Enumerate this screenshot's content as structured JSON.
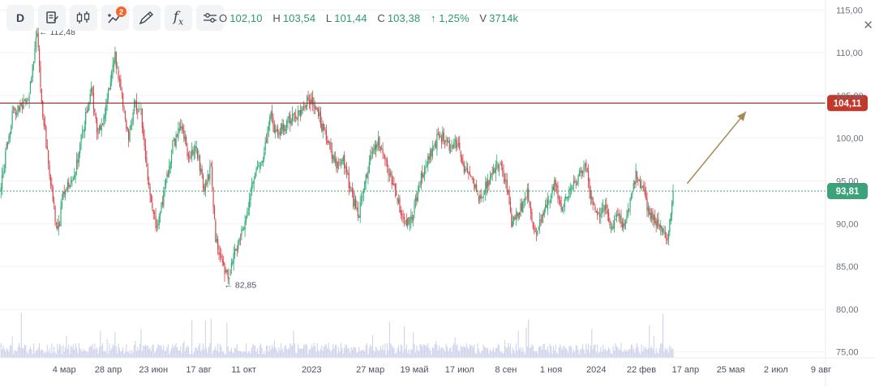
{
  "toolbar": {
    "period_label": "D",
    "indicator_badge": "2",
    "fx_label": "f",
    "fx_sub": "x",
    "icons": [
      "period-button",
      "edit-icon",
      "candles-icon",
      "indicators-icon",
      "draw-icon",
      "formula-icon",
      "settings-icon"
    ]
  },
  "ohlc": {
    "o_label": "O",
    "o_value": "102,10",
    "h_label": "H",
    "h_value": "103,54",
    "l_label": "L",
    "l_value": "101,44",
    "c_label": "C",
    "c_value": "103,38",
    "change_value": "↑ 1,25%",
    "v_label": "V",
    "v_value": "3714k",
    "value_color": "#2a9a6e"
  },
  "colors": {
    "up": "#2bab74",
    "down": "#d4484d",
    "level_line": "#8b2525",
    "level_badge": "#c0392b",
    "current_badge": "#3ca27a",
    "arrow": "#a88853",
    "volume": "#c5cbe8"
  },
  "chart_data": {
    "type": "candlestick",
    "y_ticks": [
      "115,00",
      "110,00",
      "105,00",
      "100,00",
      "95,00",
      "90,00",
      "85,00",
      "80,00",
      "75,00"
    ],
    "y_tick_values": [
      115,
      110,
      105,
      100,
      95,
      90,
      85,
      80,
      75
    ],
    "ylim": [
      74.3,
      115.6
    ],
    "x_ticks": [
      "4 мар",
      "28 апр",
      "23 июн",
      "17 авг",
      "11 окт",
      "2023",
      "27 мар",
      "19 май",
      "17 июл",
      "8 сен",
      "1 ноя",
      "2024",
      "22 фев",
      "17 апр",
      "25 мая",
      "2 июл",
      "9 авг"
    ],
    "x_tick_index": [
      45,
      84,
      124,
      164,
      204,
      264,
      316,
      355,
      395,
      436,
      476,
      516,
      556,
      595,
      635,
      675,
      715
    ],
    "total_slots": 730,
    "last_bar_index": 595,
    "anchors": [
      [
        0,
        94.5
      ],
      [
        10,
        102.8
      ],
      [
        22,
        104.0
      ],
      [
        26,
        106.0
      ],
      [
        32,
        112.4
      ],
      [
        36,
        104.2
      ],
      [
        44,
        95.0
      ],
      [
        50,
        88.8
      ],
      [
        56,
        94.0
      ],
      [
        64,
        94.8
      ],
      [
        72,
        100.5
      ],
      [
        80,
        105.5
      ],
      [
        86,
        100.2
      ],
      [
        94,
        104.3
      ],
      [
        101,
        109.6
      ],
      [
        109,
        103.5
      ],
      [
        113,
        99.6
      ],
      [
        118,
        104.0
      ],
      [
        124,
        102.8
      ],
      [
        130,
        95.6
      ],
      [
        138,
        89.2
      ],
      [
        146,
        94.8
      ],
      [
        152,
        99.1
      ],
      [
        160,
        101.5
      ],
      [
        166,
        97.5
      ],
      [
        172,
        99.3
      ],
      [
        180,
        94.0
      ],
      [
        186,
        96.8
      ],
      [
        190,
        88.2
      ],
      [
        196,
        85.0
      ],
      [
        201,
        83.8
      ],
      [
        210,
        87.8
      ],
      [
        218,
        91.5
      ],
      [
        226,
        96.5
      ],
      [
        233,
        98.3
      ],
      [
        238,
        102.8
      ],
      [
        244,
        100.5
      ],
      [
        251,
        101.5
      ],
      [
        259,
        102.5
      ],
      [
        266,
        103.0
      ],
      [
        272,
        104.5
      ],
      [
        278,
        104.2
      ],
      [
        284,
        101.4
      ],
      [
        290,
        99.5
      ],
      [
        296,
        97.0
      ],
      [
        302,
        97.8
      ],
      [
        310,
        93.5
      ],
      [
        316,
        90.8
      ],
      [
        322,
        95.0
      ],
      [
        328,
        98.2
      ],
      [
        334,
        99.5
      ],
      [
        340,
        97.2
      ],
      [
        346,
        95.2
      ],
      [
        352,
        92.5
      ],
      [
        357,
        90.2
      ],
      [
        362,
        89.8
      ],
      [
        370,
        94.5
      ],
      [
        378,
        97.4
      ],
      [
        386,
        99.8
      ],
      [
        392,
        100.4
      ],
      [
        398,
        98.6
      ],
      [
        404,
        99.5
      ],
      [
        411,
        96.0
      ],
      [
        418,
        94.8
      ],
      [
        424,
        92.8
      ],
      [
        430,
        94.5
      ],
      [
        436,
        96.2
      ],
      [
        442,
        97.0
      ],
      [
        448,
        94.0
      ],
      [
        452,
        90.0
      ],
      [
        460,
        91.8
      ],
      [
        466,
        93.6
      ],
      [
        472,
        89.0
      ],
      [
        478,
        90.2
      ],
      [
        484,
        92.5
      ],
      [
        490,
        94.8
      ],
      [
        496,
        92.0
      ],
      [
        502,
        93.6
      ],
      [
        508,
        94.8
      ],
      [
        514,
        96.0
      ],
      [
        518,
        96.5
      ],
      [
        522,
        93.6
      ],
      [
        526,
        91.8
      ],
      [
        530,
        91.0
      ],
      [
        534,
        92.0
      ],
      [
        540,
        89.5
      ],
      [
        546,
        91.0
      ],
      [
        552,
        89.6
      ],
      [
        558,
        93.5
      ],
      [
        562,
        95.6
      ],
      [
        567,
        94.5
      ],
      [
        572,
        92.0
      ],
      [
        576,
        90.8
      ],
      [
        581,
        90.2
      ],
      [
        587,
        89.0
      ],
      [
        591,
        88.5
      ],
      [
        595,
        93.9
      ]
    ],
    "volume_base": [
      74.3,
      76.7
    ],
    "annotations": {
      "high_label": "112,48",
      "high_price": 112.48,
      "high_index": 32,
      "low_label": "82,85",
      "low_price": 82.85,
      "low_index": 196
    },
    "level_line": {
      "value": 104.11,
      "label": "104,11"
    },
    "current_price": {
      "value": 93.81,
      "label": "93,81"
    },
    "trend_arrow": {
      "from": [
        608,
        94.7
      ],
      "to": [
        660,
        103.1
      ]
    }
  }
}
